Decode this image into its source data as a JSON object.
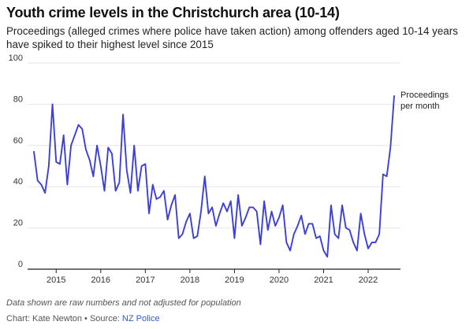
{
  "header": {
    "title": "Youth crime levels in the Christchurch area (10-14)",
    "subtitle": "Proceedings (alleged crimes where police have taken action) among offenders aged 10-14 years have spiked to their highest level since 2015"
  },
  "footer": {
    "note": "Data shown are raw numbers and not adjusted for population",
    "credit_prefix": "Chart: Kate Newton • Source: ",
    "source_name": "NZ Police"
  },
  "colors": {
    "line": "#3b3fd8",
    "link": "#2a5bd7",
    "gridline": "#e6e6e6",
    "axis": "#222222"
  },
  "chart_data": {
    "type": "line",
    "title": "Youth crime levels in the Christchurch area (10-14)",
    "xlabel": "",
    "ylabel": "",
    "ylim": [
      0,
      100
    ],
    "yticks": [
      0,
      20,
      40,
      60,
      80,
      100
    ],
    "xlim": [
      "2014-07",
      "2022-08"
    ],
    "xticks": [
      {
        "label": "2015",
        "date": "2015-01"
      },
      {
        "label": "2016",
        "date": "2016-01"
      },
      {
        "label": "2017",
        "date": "2017-01"
      },
      {
        "label": "2018",
        "date": "2018-01"
      },
      {
        "label": "2019",
        "date": "2019-01"
      },
      {
        "label": "2020",
        "date": "2020-01"
      },
      {
        "label": "2021",
        "date": "2021-01"
      },
      {
        "label": "2022",
        "date": "2022-01"
      }
    ],
    "grid": "horizontal",
    "legend": "none",
    "annotation": [
      "Proceedings",
      "per month"
    ],
    "series": [
      {
        "start": "2014-07",
        "frequency": "monthly",
        "values": [
          57,
          43,
          41,
          37,
          50,
          80,
          52,
          51,
          65,
          41,
          60,
          65,
          70,
          68,
          58,
          53,
          45,
          60,
          50,
          38,
          59,
          56,
          38,
          42,
          75,
          48,
          37,
          60,
          38,
          50,
          51,
          27,
          41,
          34,
          35,
          38,
          24,
          31,
          36,
          15,
          17,
          23,
          27,
          15,
          16,
          28,
          45,
          27,
          30,
          21,
          27,
          32,
          28,
          33,
          15,
          36,
          21,
          25,
          30,
          30,
          28,
          12,
          33,
          19,
          28,
          21,
          25,
          31,
          13,
          9,
          17,
          21,
          26,
          17,
          22,
          22,
          15,
          16,
          9,
          6,
          31,
          17,
          15,
          31,
          20,
          19,
          13,
          9,
          27,
          17,
          10,
          13,
          13,
          17,
          46,
          45,
          59,
          84
        ]
      }
    ]
  }
}
